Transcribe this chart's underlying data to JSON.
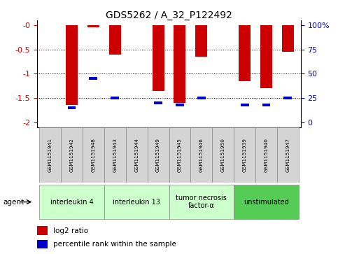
{
  "title": "GDS5262 / A_32_P122492",
  "samples": [
    "GSM1151941",
    "GSM1151942",
    "GSM1151948",
    "GSM1151943",
    "GSM1151944",
    "GSM1151949",
    "GSM1151945",
    "GSM1151946",
    "GSM1151950",
    "GSM1151939",
    "GSM1151940",
    "GSM1151947"
  ],
  "log2_ratios": [
    0.0,
    -1.65,
    -0.05,
    -0.6,
    0.0,
    -1.35,
    -1.6,
    -0.65,
    0.0,
    -1.15,
    -1.3,
    -0.55
  ],
  "percentile_ranks": [
    null,
    15,
    45,
    25,
    null,
    20,
    18,
    25,
    null,
    18,
    18,
    25
  ],
  "bar_color": "#cc0000",
  "percentile_color": "#0000cc",
  "agent_groups": [
    {
      "label": "interleukin 4",
      "start": 0,
      "end": 2,
      "color": "#ccffcc"
    },
    {
      "label": "interleukin 13",
      "start": 3,
      "end": 5,
      "color": "#ccffcc"
    },
    {
      "label": "tumor necrosis\nfactor-α",
      "start": 6,
      "end": 8,
      "color": "#ccffcc"
    },
    {
      "label": "unstimulated",
      "start": 9,
      "end": 11,
      "color": "#55cc55"
    }
  ],
  "ylim_left": [
    -2.1,
    0.1
  ],
  "yticks_left": [
    0,
    -0.5,
    -1.0,
    -1.5,
    -2.0
  ],
  "yticks_right": [
    0,
    25,
    50,
    75,
    100
  ],
  "ylabel_left_color": "#cc0000",
  "ylabel_right_color": "#0000cc",
  "legend_log2": "log2 ratio",
  "legend_pct": "percentile rank within the sample",
  "bg_color": "#ffffff",
  "bar_width": 0.55
}
